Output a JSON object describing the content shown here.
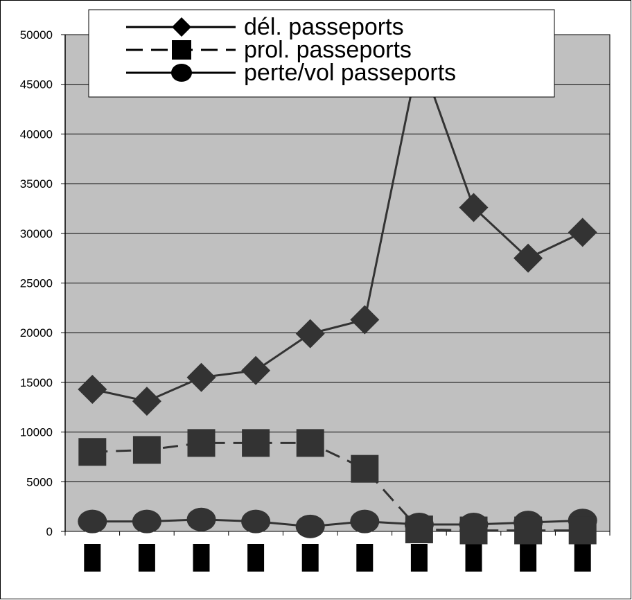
{
  "chart_data": {
    "type": "line",
    "title": "",
    "xlabel": "",
    "ylabel": "",
    "ylim": [
      0,
      50000
    ],
    "y_ticks": [
      0,
      5000,
      10000,
      15000,
      20000,
      25000,
      30000,
      35000,
      40000,
      45000,
      50000
    ],
    "y_tick_labels": [
      "0",
      "5000",
      "10000",
      "15000",
      "20000",
      "25000",
      "30000",
      "35000",
      "40000",
      "45000",
      "50000"
    ],
    "categories_redacted": true,
    "category_count": 10,
    "grid": "horizontal",
    "plot_background": "#c0c0c0",
    "legend_position": "top-center",
    "series": [
      {
        "name": "dél. passeports",
        "marker": "diamond",
        "line_style": "solid",
        "color": "#333333",
        "values": [
          14300,
          13100,
          15500,
          16200,
          19900,
          21300,
          48000,
          32600,
          27500,
          30100
        ]
      },
      {
        "name": "prol. passeports",
        "marker": "square",
        "line_style": "dashed",
        "color": "#333333",
        "values": [
          8000,
          8200,
          8900,
          8900,
          8900,
          6300,
          200,
          100,
          100,
          100
        ]
      },
      {
        "name": "perte/vol passeports",
        "marker": "circle",
        "line_style": "solid",
        "color": "#333333",
        "values": [
          1000,
          1000,
          1200,
          1000,
          500,
          1000,
          700,
          700,
          900,
          1100
        ]
      }
    ]
  }
}
